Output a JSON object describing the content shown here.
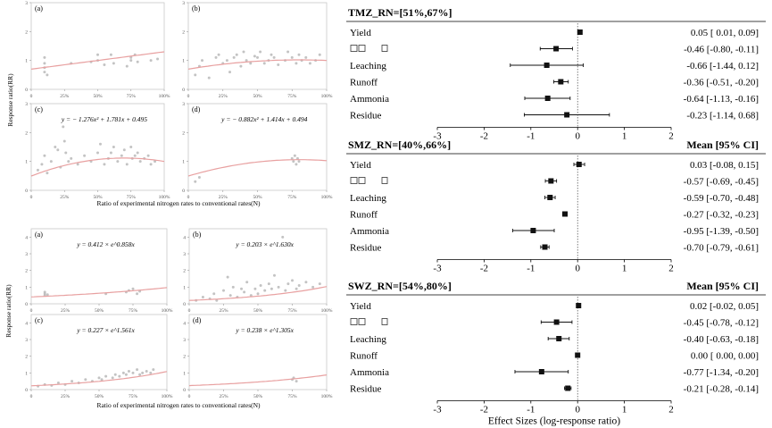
{
  "colors": {
    "fit": "#e8a0a0",
    "point": "#b8b8b8",
    "axis": "#999999",
    "forest": "#111111"
  },
  "chart_data": [
    {
      "type": "scatter",
      "group": "quadratic",
      "ylabel": "Response ratio(RR)",
      "xlabel": "Ratio of experimental nitrogen rates to conventional rates(N)",
      "x_ticks": [
        "0",
        "25%",
        "50%",
        "75%",
        "100%"
      ],
      "y_ticks": [
        "0",
        "1",
        "2",
        "3"
      ],
      "xlim": [
        0,
        1
      ],
      "ylim": [
        0,
        3
      ],
      "panels": [
        {
          "label": "(a)",
          "equation": "",
          "fit": [
            0,
            0.6,
            0.7
          ],
          "points": [
            [
              0.1,
              0.6
            ],
            [
              0.1,
              0.75
            ],
            [
              0.1,
              0.9
            ],
            [
              0.1,
              1.1
            ],
            [
              0.12,
              0.5
            ],
            [
              0.3,
              0.9
            ],
            [
              0.45,
              0.95
            ],
            [
              0.5,
              1.0
            ],
            [
              0.5,
              1.2
            ],
            [
              0.55,
              0.85
            ],
            [
              0.6,
              1.2
            ],
            [
              0.62,
              0.9
            ],
            [
              0.72,
              0.8
            ],
            [
              0.75,
              1.0
            ],
            [
              0.75,
              1.1
            ],
            [
              0.78,
              1.2
            ],
            [
              0.8,
              0.95
            ],
            [
              0.9,
              1.0
            ],
            [
              0.95,
              1.05
            ]
          ]
        },
        {
          "label": "(b)",
          "equation": "",
          "fit": [
            -0.5,
            0.8,
            0.7
          ],
          "points": [
            [
              0.05,
              0.5
            ],
            [
              0.08,
              0.8
            ],
            [
              0.1,
              1.0
            ],
            [
              0.15,
              0.4
            ],
            [
              0.2,
              1.1
            ],
            [
              0.22,
              1.2
            ],
            [
              0.25,
              0.9
            ],
            [
              0.28,
              1.0
            ],
            [
              0.3,
              0.6
            ],
            [
              0.33,
              1.1
            ],
            [
              0.35,
              1.2
            ],
            [
              0.38,
              0.8
            ],
            [
              0.4,
              1.3
            ],
            [
              0.42,
              1.0
            ],
            [
              0.45,
              0.9
            ],
            [
              0.48,
              1.15
            ],
            [
              0.5,
              1.1
            ],
            [
              0.52,
              1.3
            ],
            [
              0.55,
              0.9
            ],
            [
              0.58,
              1.0
            ],
            [
              0.6,
              1.2
            ],
            [
              0.62,
              1.1
            ],
            [
              0.65,
              0.85
            ],
            [
              0.7,
              1.0
            ],
            [
              0.72,
              1.3
            ],
            [
              0.75,
              1.1
            ],
            [
              0.78,
              0.9
            ],
            [
              0.8,
              1.2
            ],
            [
              0.82,
              1.0
            ],
            [
              0.85,
              1.1
            ],
            [
              0.88,
              0.9
            ],
            [
              0.92,
              1.0
            ],
            [
              0.95,
              1.2
            ]
          ]
        },
        {
          "label": "(c)",
          "equation": "y = − 1.276x² + 1.781x + 0.495",
          "fit": [
            -1.276,
            1.781,
            0.495
          ],
          "points": [
            [
              0.05,
              0.7
            ],
            [
              0.08,
              0.9
            ],
            [
              0.1,
              1.2
            ],
            [
              0.12,
              0.6
            ],
            [
              0.15,
              1.0
            ],
            [
              0.18,
              1.5
            ],
            [
              0.2,
              1.4
            ],
            [
              0.22,
              0.8
            ],
            [
              0.24,
              2.2
            ],
            [
              0.25,
              1.7
            ],
            [
              0.26,
              1.3
            ],
            [
              0.28,
              1.0
            ],
            [
              0.3,
              1.1
            ],
            [
              0.35,
              0.9
            ],
            [
              0.4,
              1.2
            ],
            [
              0.45,
              1.0
            ],
            [
              0.5,
              1.3
            ],
            [
              0.52,
              1.6
            ],
            [
              0.55,
              0.9
            ],
            [
              0.58,
              1.1
            ],
            [
              0.6,
              1.3
            ],
            [
              0.62,
              1.5
            ],
            [
              0.65,
              1.0
            ],
            [
              0.68,
              1.2
            ],
            [
              0.7,
              1.4
            ],
            [
              0.72,
              0.9
            ],
            [
              0.75,
              1.5
            ],
            [
              0.76,
              1.1
            ],
            [
              0.78,
              1.2
            ],
            [
              0.8,
              1.3
            ],
            [
              0.82,
              1.0
            ],
            [
              0.85,
              1.1
            ],
            [
              0.88,
              1.2
            ],
            [
              0.9,
              0.9
            ],
            [
              0.93,
              1.0
            ]
          ]
        },
        {
          "label": "(d)",
          "equation": "y = − 0.882x² + 1.414x + 0.494",
          "fit": [
            -0.882,
            1.414,
            0.494
          ],
          "points": [
            [
              0.05,
              0.3
            ],
            [
              0.08,
              0.45
            ],
            [
              0.75,
              1.1
            ],
            [
              0.76,
              1.0
            ],
            [
              0.77,
              1.2
            ],
            [
              0.78,
              0.9
            ],
            [
              0.79,
              1.1
            ],
            [
              0.8,
              1.0
            ]
          ]
        }
      ]
    },
    {
      "type": "scatter",
      "group": "exponential",
      "ylabel": "Response ratio(RR)",
      "xlabel": "Ratio of experimental nitrogen rates to conventional rates(N)",
      "x_ticks": [
        "0",
        "25%",
        "50%",
        "75%",
        "100%"
      ],
      "y_ticks": [
        "0",
        "1",
        "2",
        "3",
        "4"
      ],
      "xlim": [
        0,
        1
      ],
      "ylim": [
        0,
        4.5
      ],
      "panels": [
        {
          "label": "(a)",
          "equation": "y = 0.412 × e^0.858x",
          "base": 0.412,
          "rate": 0.858,
          "points": [
            [
              0.1,
              0.5
            ],
            [
              0.1,
              0.6
            ],
            [
              0.1,
              0.7
            ],
            [
              0.12,
              0.55
            ],
            [
              0.55,
              0.6
            ],
            [
              0.7,
              0.7
            ],
            [
              0.72,
              0.8
            ],
            [
              0.75,
              0.9
            ],
            [
              0.78,
              0.6
            ],
            [
              0.8,
              0.75
            ]
          ]
        },
        {
          "label": "(b)",
          "equation": "y = 0.203 × e^1.630x",
          "base": 0.203,
          "rate": 1.63,
          "points": [
            [
              0.05,
              0.2
            ],
            [
              0.1,
              0.4
            ],
            [
              0.15,
              0.3
            ],
            [
              0.18,
              0.6
            ],
            [
              0.2,
              0.2
            ],
            [
              0.25,
              0.8
            ],
            [
              0.28,
              1.6
            ],
            [
              0.3,
              0.5
            ],
            [
              0.32,
              1.0
            ],
            [
              0.35,
              0.4
            ],
            [
              0.38,
              0.9
            ],
            [
              0.4,
              0.7
            ],
            [
              0.42,
              1.3
            ],
            [
              0.45,
              0.5
            ],
            [
              0.48,
              0.9
            ],
            [
              0.5,
              0.6
            ],
            [
              0.52,
              1.1
            ],
            [
              0.55,
              0.8
            ],
            [
              0.58,
              1.2
            ],
            [
              0.6,
              0.9
            ],
            [
              0.62,
              1.7
            ],
            [
              0.65,
              1.0
            ],
            [
              0.68,
              4.0
            ],
            [
              0.7,
              0.8
            ],
            [
              0.72,
              1.2
            ],
            [
              0.75,
              1.4
            ],
            [
              0.78,
              0.9
            ],
            [
              0.8,
              1.1
            ],
            [
              0.85,
              1.3
            ],
            [
              0.9,
              1.0
            ],
            [
              0.95,
              1.2
            ]
          ]
        },
        {
          "label": "(c)",
          "equation": "y = 0.227 × e^1.561x",
          "base": 0.227,
          "rate": 1.561,
          "points": [
            [
              0.05,
              0.2
            ],
            [
              0.1,
              0.3
            ],
            [
              0.15,
              0.25
            ],
            [
              0.2,
              0.4
            ],
            [
              0.25,
              0.3
            ],
            [
              0.3,
              0.5
            ],
            [
              0.35,
              0.4
            ],
            [
              0.4,
              0.6
            ],
            [
              0.45,
              0.5
            ],
            [
              0.5,
              0.7
            ],
            [
              0.52,
              0.6
            ],
            [
              0.55,
              0.8
            ],
            [
              0.6,
              0.7
            ],
            [
              0.62,
              0.9
            ],
            [
              0.65,
              0.8
            ],
            [
              0.68,
              1.0
            ],
            [
              0.7,
              0.9
            ],
            [
              0.72,
              1.1
            ],
            [
              0.75,
              1.0
            ],
            [
              0.78,
              1.2
            ],
            [
              0.8,
              0.9
            ],
            [
              0.82,
              1.0
            ],
            [
              0.85,
              1.1
            ],
            [
              0.88,
              1.0
            ],
            [
              0.9,
              1.2
            ]
          ]
        },
        {
          "label": "(d)",
          "equation": "y = 0.238 × e^1.305x",
          "base": 0.238,
          "rate": 1.305,
          "points": [
            [
              0.75,
              0.6
            ],
            [
              0.76,
              0.7
            ],
            [
              0.78,
              0.5
            ]
          ]
        }
      ]
    },
    {
      "type": "forest",
      "xlabel": "Effect Sizes (log-response ratio)",
      "x_ticks": [
        "-3",
        "-2",
        "-1",
        "0",
        "1",
        "2"
      ],
      "xlim": [
        -3,
        2
      ],
      "header_right": "Mean [95% CI]",
      "panels": [
        {
          "title": "TMZ_RN=[51%,67%]",
          "show_header": false,
          "rows": [
            {
              "label": "Yield",
              "mean": 0.05,
              "lo": 0.01,
              "hi": 0.09,
              "text": "0.05 [ 0.01,  0.09]"
            },
            {
              "label": "",
              "mean": -0.46,
              "lo": -0.8,
              "hi": -0.11,
              "text": "-0.46 [-0.80, -0.11]"
            },
            {
              "label": "Leaching",
              "mean": -0.66,
              "lo": -1.44,
              "hi": 0.12,
              "text": "-0.66 [-1.44,  0.12]"
            },
            {
              "label": "Runoff",
              "mean": -0.36,
              "lo": -0.51,
              "hi": -0.2,
              "text": "-0.36 [-0.51, -0.20]"
            },
            {
              "label": "Ammonia",
              "mean": -0.64,
              "lo": -1.13,
              "hi": -0.16,
              "text": "-0.64 [-1.13, -0.16]"
            },
            {
              "label": "Residue",
              "mean": -0.23,
              "lo": -1.14,
              "hi": 0.68,
              "text": "-0.23 [-1.14,  0.68]"
            }
          ]
        },
        {
          "title": "SMZ_RN=[40%,66%]",
          "show_header": true,
          "rows": [
            {
              "label": "Yield",
              "mean": 0.03,
              "lo": -0.08,
              "hi": 0.15,
              "text": "0.03 [-0.08,  0.15]"
            },
            {
              "label": "",
              "mean": -0.57,
              "lo": -0.69,
              "hi": -0.45,
              "text": "-0.57 [-0.69, -0.45]"
            },
            {
              "label": "Leaching",
              "mean": -0.59,
              "lo": -0.7,
              "hi": -0.48,
              "text": "-0.59 [-0.70, -0.48]"
            },
            {
              "label": "Runoff",
              "mean": -0.27,
              "lo": -0.32,
              "hi": -0.23,
              "text": "-0.27 [-0.32, -0.23]"
            },
            {
              "label": "Ammonia",
              "mean": -0.95,
              "lo": -1.39,
              "hi": -0.5,
              "text": "-0.95 [-1.39, -0.50]"
            },
            {
              "label": "Residue",
              "mean": -0.7,
              "lo": -0.79,
              "hi": -0.61,
              "text": "-0.70 [-0.79, -0.61]"
            }
          ]
        },
        {
          "title": "SWZ_RN=[54%,80%]",
          "show_header": true,
          "rows": [
            {
              "label": "Yield",
              "mean": 0.02,
              "lo": -0.02,
              "hi": 0.05,
              "text": "0.02 [-0.02,  0.05]"
            },
            {
              "label": "",
              "mean": -0.45,
              "lo": -0.78,
              "hi": -0.12,
              "text": "-0.45 [-0.78, -0.12]"
            },
            {
              "label": "Leaching",
              "mean": -0.4,
              "lo": -0.63,
              "hi": -0.18,
              "text": "-0.40 [-0.63, -0.18]"
            },
            {
              "label": "Runoff",
              "mean": 0.0,
              "lo": 0.0,
              "hi": 0.0,
              "text": "0.00 [ 0.00,  0.00]"
            },
            {
              "label": "Ammonia",
              "mean": -0.77,
              "lo": -1.34,
              "hi": -0.2,
              "text": "-0.77 [-1.34, -0.20]"
            },
            {
              "label": "Residue",
              "mean": -0.21,
              "lo": -0.28,
              "hi": -0.14,
              "text": "-0.21 [-0.28, -0.14]"
            }
          ]
        }
      ]
    }
  ]
}
